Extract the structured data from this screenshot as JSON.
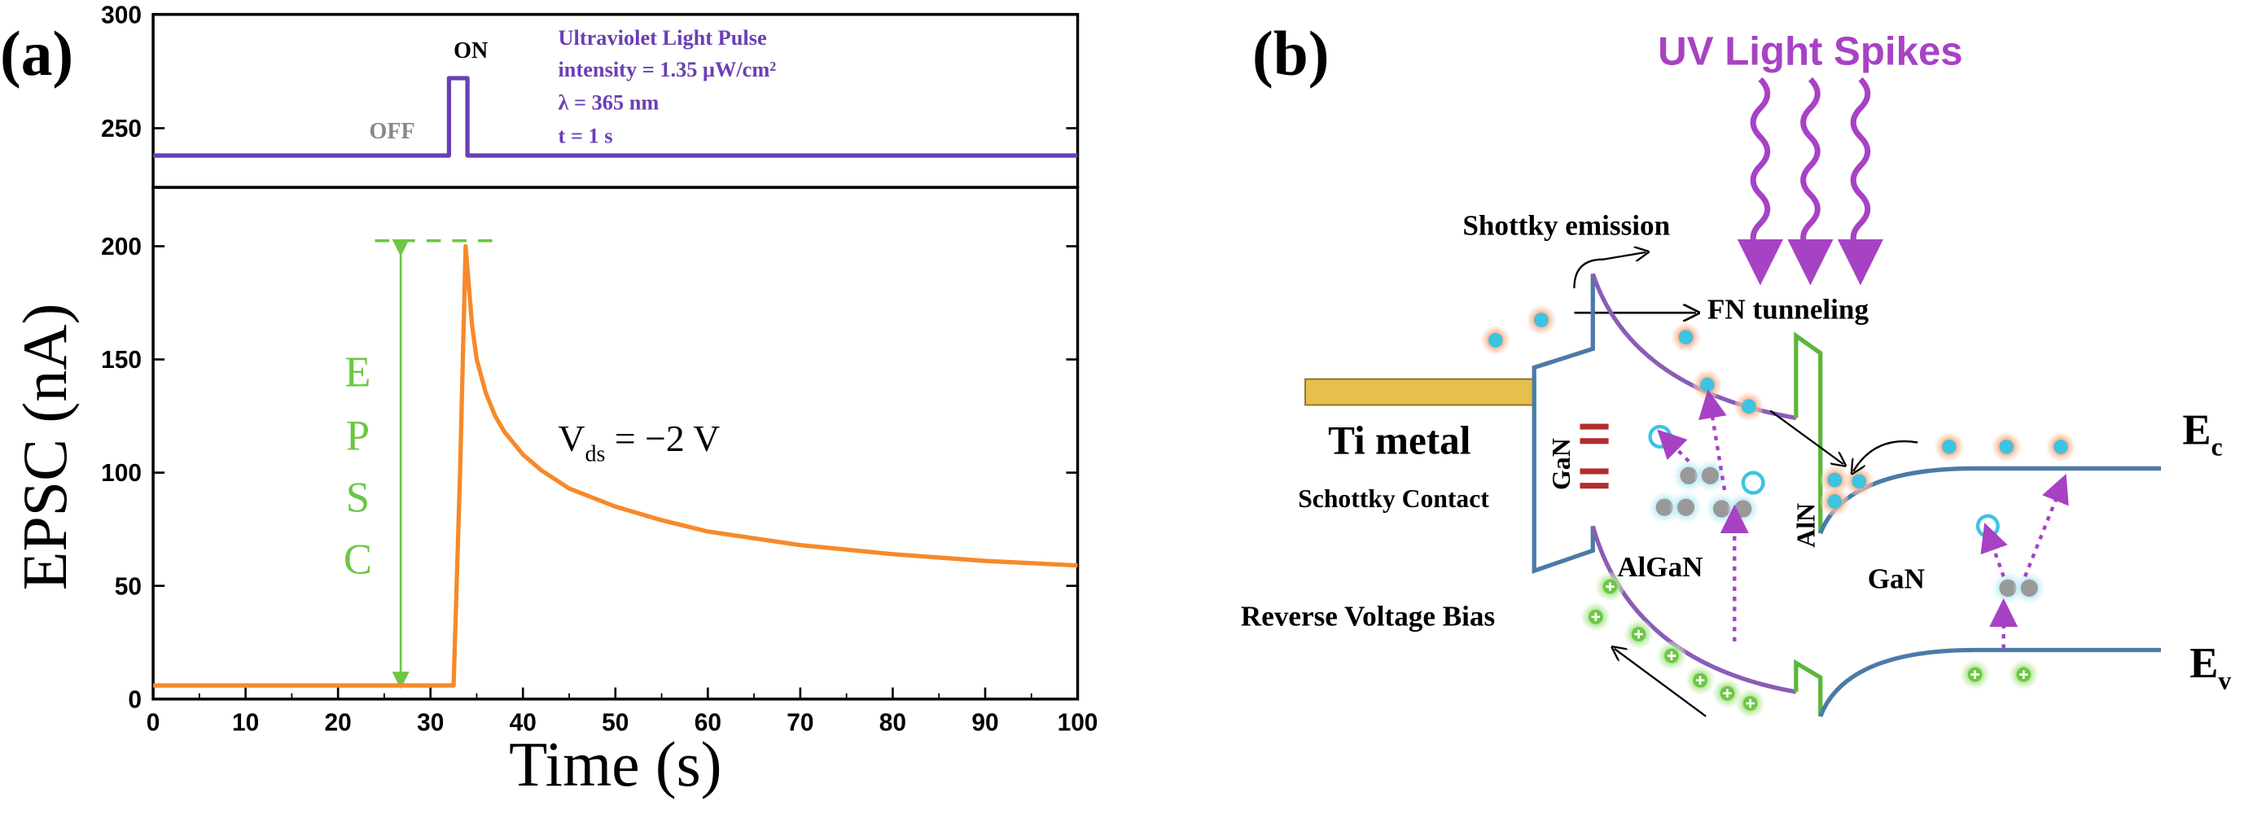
{
  "chart_data": [
    {
      "type": "line",
      "panel_label": "(a)",
      "annotations": [
        "ON",
        "OFF",
        "Ultraviolet Light Pulse",
        "intensity = 1.35 μW/cm²",
        "λ = 365 nm",
        "t = 1 s"
      ],
      "x": [
        0,
        32,
        32,
        34,
        34,
        100
      ],
      "xlim": [
        0,
        100
      ],
      "series": [
        {
          "color": "#6a3fb5",
          "values": [
            238,
            238,
            272,
            272,
            238,
            238
          ]
        }
      ],
      "ylim": [
        224,
        300
      ],
      "yticks": [
        250,
        300
      ]
    },
    {
      "type": "line",
      "xlabel": "Time  (s)",
      "ylabel": "EPSC  (nA)",
      "epsc_letters": [
        "E",
        "P",
        "S",
        "C"
      ],
      "vds_label": {
        "main": "V",
        "sub": "ds",
        "rest": " = −2 V"
      },
      "x": [
        0,
        10,
        20,
        30,
        32.5,
        33.2,
        33.8,
        34.5,
        35,
        36,
        37,
        38,
        40,
        42,
        45,
        50,
        55,
        60,
        70,
        80,
        90,
        100
      ],
      "series": [
        {
          "color": "#f7892a",
          "values": [
            6,
            6,
            6,
            6,
            6,
            100,
            200,
            165,
            150,
            135,
            125,
            118,
            108,
            101,
            93,
            85,
            79,
            74,
            68,
            64,
            61,
            59
          ]
        }
      ],
      "xlim": [
        0,
        100
      ],
      "xticks": [
        0,
        10,
        20,
        30,
        40,
        50,
        60,
        70,
        80,
        90,
        100
      ],
      "ylim": [
        0,
        226
      ],
      "yticks": [
        0,
        50,
        100,
        150,
        200
      ]
    }
  ],
  "diagram": {
    "panel_label": "(b)",
    "uv": "UV Light Spikes",
    "emission": "Shottky emission",
    "tunneling": "FN tunneling",
    "metal": "Ti metal",
    "contact": "Schottky Contact",
    "gan_thin": "GaN",
    "algan": "AlGaN",
    "aln": "AlN",
    "gan": "GaN",
    "ec": {
      "main": "E",
      "sub": "c"
    },
    "ev": {
      "main": "E",
      "sub": "v"
    },
    "bias": "Reverse Voltage Bias"
  }
}
